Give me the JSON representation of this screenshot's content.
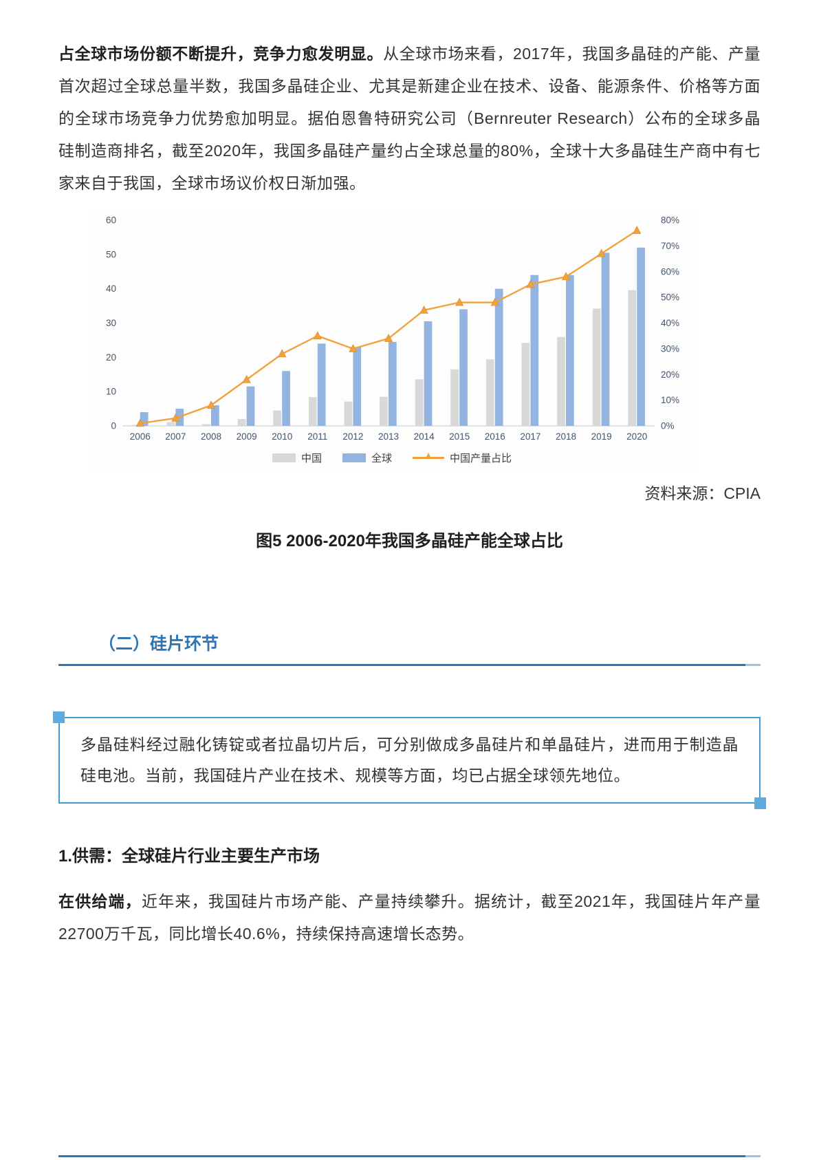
{
  "article": {
    "p1_bold": "占全球市场份额不断提升，竞争力愈发明显。",
    "p1_rest": "从全球市场来看，2017年，我国多晶硅的产能、产量首次超过全球总量半数，我国多晶硅企业、尤其是新建企业在技术、设备、能源条件、价格等方面的全球市场竞争力优势愈加明显。据伯恩鲁特研究公司（Bernreuter Research）公布的全球多晶硅制造商排名，截至2020年，我国多晶硅产量约占全球总量的80%，全球十大多晶硅生产商中有七家来自于我国，全球市场议价权日渐加强。",
    "source": "资料来源：CPIA",
    "caption": "图5  2006-2020年我国多晶硅产能全球占比",
    "section_title": "（二）硅片环节",
    "quote": "多晶硅料经过融化铸锭或者拉晶切片后，可分别做成多晶硅片和单晶硅片，进而用于制造晶硅电池。当前，我国硅片产业在技术、规模等方面，均已占据全球领先地位。",
    "subsection": "1.供需：全球硅片行业主要生产市场",
    "p2_bold": "在供给端，",
    "p2_rest": "近年来，我国硅片市场产能、产量持续攀升。据统计，截至2021年，我国硅片年产量22700万千瓦，同比增长40.6%，持续保持高速增长态势。"
  },
  "chart_data": {
    "type": "bar",
    "title": "",
    "xlabel": "",
    "ylabel": "",
    "categories": [
      "2006",
      "2007",
      "2008",
      "2009",
      "2010",
      "2011",
      "2012",
      "2013",
      "2014",
      "2015",
      "2016",
      "2017",
      "2018",
      "2019",
      "2020"
    ],
    "series": [
      {
        "name": "中国",
        "type": "bar",
        "axis": "left",
        "color": "#d8d8d8",
        "values": [
          0.3,
          1.1,
          0.5,
          2.0,
          4.5,
          8.4,
          7.1,
          8.5,
          13.6,
          16.5,
          19.4,
          24.2,
          25.9,
          34.2,
          39.6
        ]
      },
      {
        "name": "全球",
        "type": "bar",
        "axis": "left",
        "color": "#93b3e0",
        "values": [
          4.0,
          5.0,
          6.0,
          11.5,
          16.0,
          24.0,
          23.0,
          24.5,
          30.5,
          34.0,
          40.0,
          44.0,
          44.0,
          50.5,
          52.0
        ]
      },
      {
        "name": "中国产量占比",
        "type": "line",
        "axis": "right",
        "color": "#f2a23c",
        "values": [
          1,
          3,
          8,
          18,
          28,
          35,
          30,
          34,
          45,
          48,
          48,
          55,
          58,
          67,
          76
        ]
      }
    ],
    "left_axis": {
      "min": 0,
      "max": 60,
      "step": 10
    },
    "right_axis": {
      "min": 0,
      "max": 80,
      "step": 10,
      "suffix": "%"
    },
    "grid": false,
    "legend_position": "bottom",
    "axis_label_color": "#44546a",
    "axis_line_color": "#c7c7c7"
  },
  "colors": {
    "heading_blue": "#2e75b6",
    "divider_tail_blue": "#9cc2e5",
    "quote_border_blue": "#3f9cd9",
    "quote_corner_blue": "#5fabdd"
  }
}
